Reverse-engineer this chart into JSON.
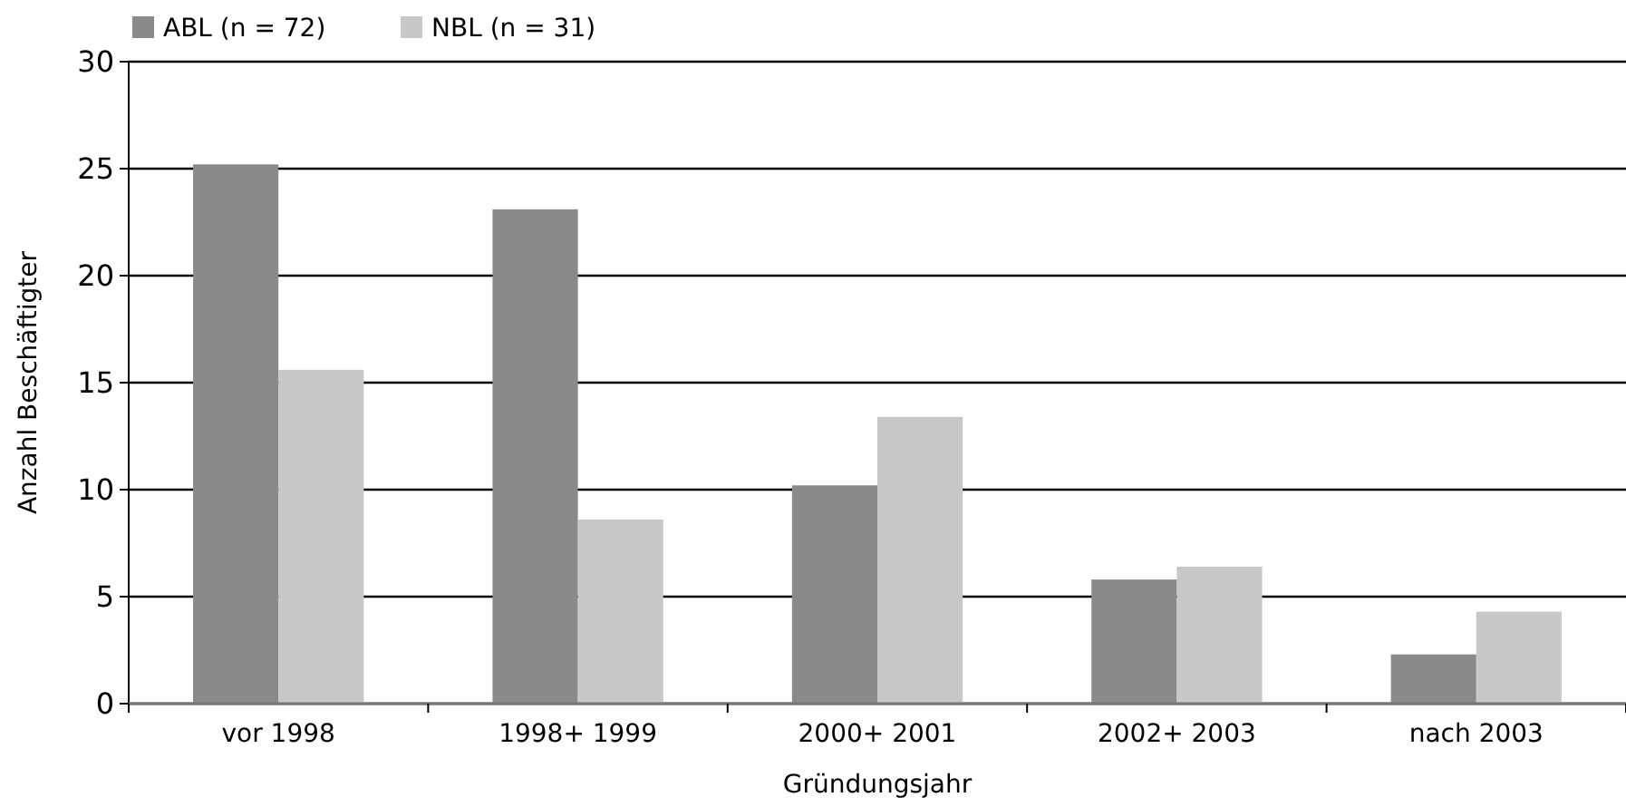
{
  "chart_data": {
    "type": "bar",
    "xlabel": "Gründungsjahr",
    "ylabel": "Anzahl Beschäftigter",
    "categories": [
      "vor 1998",
      "1998+ 1999",
      "2000+ 2001",
      "2002+ 2003",
      "nach 2003"
    ],
    "series": [
      {
        "name": "ABL (n = 72)",
        "color": "#8a8a8a",
        "values": [
          25.2,
          23.1,
          10.2,
          5.8,
          2.3
        ]
      },
      {
        "name": "NBL (n = 31)",
        "color": "#c8c8c8",
        "values": [
          15.6,
          8.6,
          13.4,
          6.4,
          4.3
        ]
      }
    ],
    "ylim": [
      0,
      30
    ],
    "yticks": [
      0,
      5,
      10,
      15,
      20,
      25,
      30
    ],
    "grid": "y",
    "legend": "top left"
  }
}
